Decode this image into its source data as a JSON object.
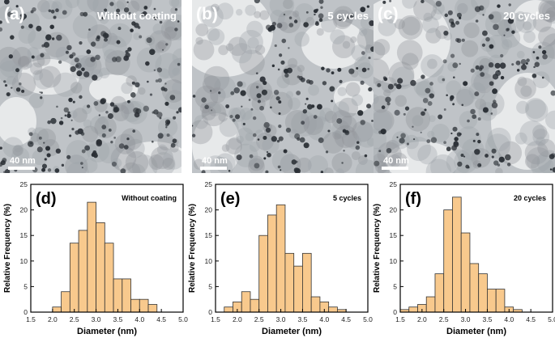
{
  "tem_panels": [
    {
      "letter": "(a)",
      "condition": "Without coating",
      "scale_bar": "40 nm",
      "density": 1.0
    },
    {
      "letter": "(b)",
      "condition": "5 cycles",
      "scale_bar": "40 nm",
      "density": 0.8
    },
    {
      "letter": "(c)",
      "condition": "20 cycles",
      "scale_bar": "40 nm",
      "density": 0.9
    }
  ],
  "chart_data": [
    {
      "type": "bar",
      "letter": "(d)",
      "title": "Without coating",
      "xlabel": "Diameter (nm)",
      "ylabel": "Relative Frequency (%)",
      "xlim": [
        1.5,
        5.0
      ],
      "ylim": [
        0,
        25
      ],
      "xticks": [
        "1.5",
        "2.0",
        "2.5",
        "3.0",
        "3.5",
        "4.0",
        "4.5",
        "5.0"
      ],
      "yticks": [
        "0",
        "5",
        "10",
        "15",
        "20",
        "25"
      ],
      "bin_width": 0.2,
      "x": [
        2.1,
        2.3,
        2.5,
        2.7,
        2.9,
        3.1,
        3.3,
        3.5,
        3.7,
        3.9,
        4.1,
        4.3,
        4.5
      ],
      "values": [
        1.0,
        4.0,
        13.5,
        16.0,
        21.5,
        17.5,
        13.5,
        6.5,
        6.5,
        2.5,
        2.5,
        1.5,
        0
      ]
    },
    {
      "type": "bar",
      "letter": "(e)",
      "title": "5 cycles",
      "xlabel": "Diameter (nm)",
      "ylabel": "Relative Frequency (%)",
      "xlim": [
        1.5,
        5.0
      ],
      "ylim": [
        0,
        25
      ],
      "xticks": [
        "1.5",
        "2.0",
        "2.5",
        "3.0",
        "3.5",
        "4.0",
        "4.5",
        "5.0"
      ],
      "yticks": [
        "0",
        "5",
        "10",
        "15",
        "20",
        "25"
      ],
      "bin_width": 0.2,
      "x": [
        1.8,
        2.0,
        2.2,
        2.4,
        2.6,
        2.8,
        3.0,
        3.2,
        3.4,
        3.6,
        3.8,
        4.0,
        4.2,
        4.4,
        4.6,
        4.8
      ],
      "values": [
        1.0,
        2.0,
        4.0,
        2.5,
        15.0,
        19.0,
        21.0,
        11.5,
        9.0,
        11.5,
        3.0,
        2.0,
        1.0,
        0.5,
        0,
        0
      ]
    },
    {
      "type": "bar",
      "letter": "(f)",
      "title": "20 cycles",
      "xlabel": "Diameter (nm)",
      "ylabel": "Relative Frequency (%)",
      "xlim": [
        1.5,
        5.0
      ],
      "ylim": [
        0,
        25
      ],
      "xticks": [
        "1.5",
        "2.0",
        "2.5",
        "3.0",
        "3.5",
        "4.0",
        "4.5",
        "5.0"
      ],
      "yticks": [
        "0",
        "5",
        "10",
        "15",
        "20",
        "25"
      ],
      "bin_width": 0.2,
      "x": [
        1.6,
        1.8,
        2.0,
        2.2,
        2.4,
        2.6,
        2.8,
        3.0,
        3.2,
        3.4,
        3.6,
        3.8,
        4.0,
        4.2,
        4.4,
        4.6
      ],
      "values": [
        0.5,
        1.0,
        1.5,
        3.0,
        7.5,
        20.0,
        22.5,
        15.5,
        9.5,
        7.5,
        4.5,
        4.5,
        1.0,
        0.5,
        0,
        0
      ]
    }
  ],
  "colors": {
    "bar_fill": "#f8c98d",
    "bar_stroke": "#333333",
    "tem_base": "#c9cccf",
    "tem_particle": "#2a2f35",
    "scale_bar": "#ffffff"
  }
}
